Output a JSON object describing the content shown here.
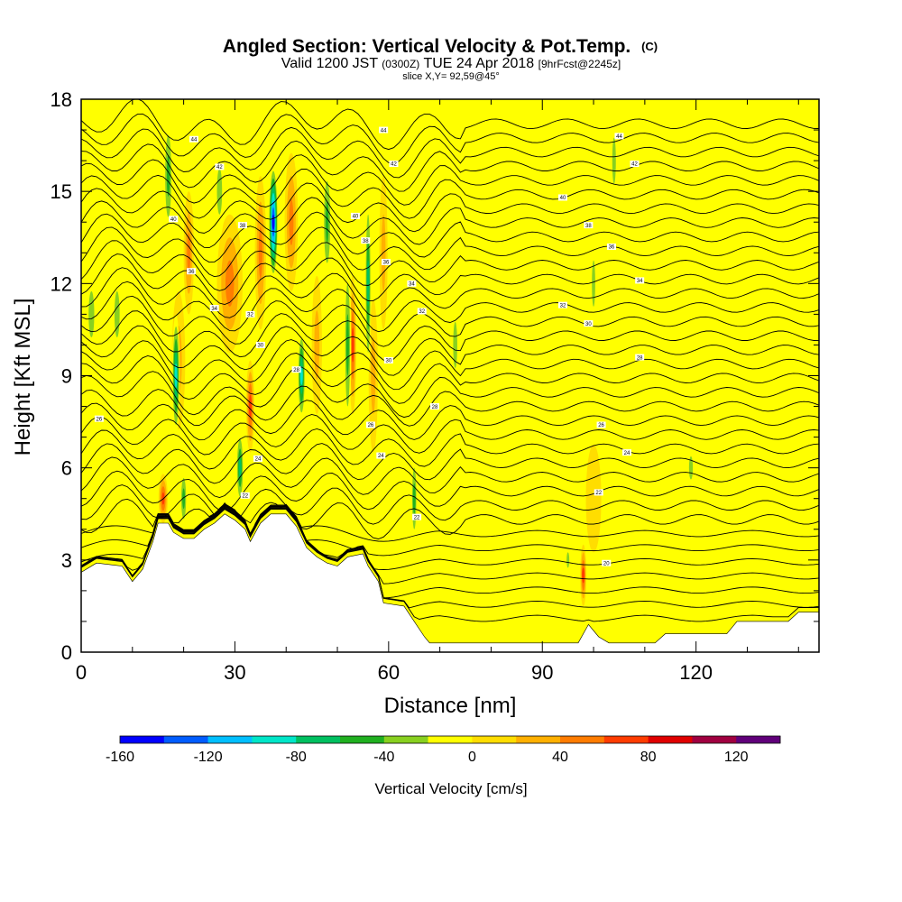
{
  "chart_data": {
    "type": "heatmap",
    "title": "Angled Section: Vertical Velocity & Pot.Temp.",
    "title_unit": "(C)",
    "subtitle_parts": [
      "Valid 1200 JST",
      "(0300Z)",
      "TUE 24 Apr 2018",
      "[9hrFcst@2245z]"
    ],
    "slice_label": "slice X,Y= 92,59@45°",
    "xlabel": "Distance [nm]",
    "ylabel": "Height [Kft MSL]",
    "xlim": [
      0,
      144
    ],
    "ylim": [
      0,
      18
    ],
    "x_ticks": [
      "0",
      "30",
      "60",
      "90",
      "120"
    ],
    "y_ticks": [
      "0",
      "3",
      "6",
      "9",
      "12",
      "15",
      "18"
    ],
    "colorbar": {
      "label": "Vertical Velocity [cm/s]",
      "range": [
        -160,
        140
      ],
      "step": 20,
      "tick_labels": [
        "-160",
        "-120",
        "-80",
        "-40",
        "0",
        "40",
        "80",
        "120"
      ],
      "colors": [
        "#0000ff",
        "#005cff",
        "#00bfff",
        "#00e6c8",
        "#00c060",
        "#20b020",
        "#88d020",
        "#ffff00",
        "#ffdd00",
        "#ffb000",
        "#ff7c00",
        "#ff3c00",
        "#e00000",
        "#a00040",
        "#60007a"
      ]
    },
    "terrain_kft": [
      [
        0,
        2.6
      ],
      [
        3,
        2.9
      ],
      [
        8,
        2.8
      ],
      [
        10,
        2.3
      ],
      [
        12,
        2.7
      ],
      [
        14,
        3.6
      ],
      [
        15,
        4.2
      ],
      [
        17,
        4.2
      ],
      [
        18,
        3.9
      ],
      [
        20,
        3.7
      ],
      [
        22,
        3.7
      ],
      [
        24,
        4.0
      ],
      [
        26,
        4.2
      ],
      [
        28,
        4.5
      ],
      [
        30,
        4.3
      ],
      [
        32,
        4.0
      ],
      [
        33,
        3.6
      ],
      [
        35,
        4.2
      ],
      [
        37,
        4.5
      ],
      [
        40,
        4.5
      ],
      [
        42,
        4.1
      ],
      [
        44,
        3.4
      ],
      [
        46,
        3.1
      ],
      [
        48,
        2.9
      ],
      [
        50,
        2.8
      ],
      [
        52,
        3.1
      ],
      [
        55,
        3.2
      ],
      [
        56,
        2.8
      ],
      [
        58,
        2.3
      ],
      [
        59,
        1.6
      ],
      [
        63,
        1.5
      ],
      [
        65,
        1.0
      ],
      [
        67,
        0.5
      ],
      [
        68,
        0.3
      ],
      [
        97,
        0.3
      ],
      [
        99,
        0.9
      ],
      [
        101,
        0.5
      ],
      [
        103,
        0.3
      ],
      [
        112,
        0.3
      ],
      [
        114,
        0.6
      ],
      [
        126,
        0.6
      ],
      [
        128,
        1.0
      ],
      [
        138,
        1.0
      ],
      [
        140,
        1.3
      ],
      [
        144,
        1.3
      ]
    ],
    "updrafts": [
      {
        "x": 16,
        "y": 5.0,
        "w": 1.8,
        "h": 1.6,
        "v": 85
      },
      {
        "x": 19,
        "y": 9.5,
        "w": 2.6,
        "h": 4.5,
        "v": 45
      },
      {
        "x": 21,
        "y": 13,
        "w": 2.0,
        "h": 4.0,
        "v": 60
      },
      {
        "x": 29,
        "y": 12,
        "w": 5.0,
        "h": 4.5,
        "v": 55
      },
      {
        "x": 33,
        "y": 8.0,
        "w": 1.6,
        "h": 3.0,
        "v": 75
      },
      {
        "x": 35,
        "y": 13,
        "w": 2.2,
        "h": 5.0,
        "v": 60
      },
      {
        "x": 41,
        "y": 14,
        "w": 2.6,
        "h": 4.5,
        "v": 55
      },
      {
        "x": 46,
        "y": 10,
        "w": 2.0,
        "h": 4.5,
        "v": 45
      },
      {
        "x": 53,
        "y": 10,
        "w": 1.4,
        "h": 4.5,
        "v": 75
      },
      {
        "x": 57,
        "y": 9,
        "w": 1.8,
        "h": 5.0,
        "v": 45
      },
      {
        "x": 59,
        "y": 13,
        "w": 1.6,
        "h": 5.0,
        "v": 40
      },
      {
        "x": 98,
        "y": 2.5,
        "w": 1.2,
        "h": 2.0,
        "v": 80
      },
      {
        "x": 100,
        "y": 5.0,
        "w": 3.0,
        "h": 3.5,
        "v": 20
      }
    ],
    "downdrafts": [
      {
        "x": 2,
        "y": 11,
        "w": 2.2,
        "h": 3.0,
        "v": -40
      },
      {
        "x": 7,
        "y": 11,
        "w": 2.0,
        "h": 3.0,
        "v": -30
      },
      {
        "x": 17,
        "y": 15.5,
        "w": 1.8,
        "h": 4.0,
        "v": -60
      },
      {
        "x": 18.5,
        "y": 9,
        "w": 1.5,
        "h": 4.0,
        "v": -100
      },
      {
        "x": 20,
        "y": 5.0,
        "w": 1.4,
        "h": 2.0,
        "v": -60
      },
      {
        "x": 27,
        "y": 15,
        "w": 2.0,
        "h": 3.0,
        "v": -40
      },
      {
        "x": 31,
        "y": 6,
        "w": 1.5,
        "h": 2.5,
        "v": -80
      },
      {
        "x": 37.5,
        "y": 14,
        "w": 1.8,
        "h": 3.8,
        "v": -150
      },
      {
        "x": 43,
        "y": 9,
        "w": 1.5,
        "h": 3.0,
        "v": -100
      },
      {
        "x": 48,
        "y": 14,
        "w": 1.8,
        "h": 4.0,
        "v": -60
      },
      {
        "x": 52,
        "y": 10,
        "w": 1.4,
        "h": 6.0,
        "v": -60
      },
      {
        "x": 56,
        "y": 12,
        "w": 1.2,
        "h": 6.0,
        "v": -70
      },
      {
        "x": 65,
        "y": 5.0,
        "w": 1.2,
        "h": 3.0,
        "v": -60
      },
      {
        "x": 73,
        "y": 10,
        "w": 1.6,
        "h": 3.0,
        "v": -30
      },
      {
        "x": 104,
        "y": 16,
        "w": 1.4,
        "h": 3.0,
        "v": -40
      },
      {
        "x": 100,
        "y": 12,
        "w": 1.3,
        "h": 3.0,
        "v": -30
      },
      {
        "x": 95,
        "y": 3.0,
        "w": 1.0,
        "h": 1.0,
        "v": -30
      },
      {
        "x": 119,
        "y": 6,
        "w": 1.5,
        "h": 1.5,
        "v": -30
      }
    ],
    "theta_contours": {
      "ymin": 1.1,
      "ymax": 17.6,
      "step": 0.46
    },
    "theta_labels": [
      {
        "x": 22,
        "y": 16.7,
        "text": "44"
      },
      {
        "x": 27,
        "y": 15.8,
        "text": "42"
      },
      {
        "x": 18,
        "y": 14.1,
        "text": "40"
      },
      {
        "x": 31.5,
        "y": 13.9,
        "text": "38"
      },
      {
        "x": 21.5,
        "y": 12.4,
        "text": "36"
      },
      {
        "x": 26,
        "y": 11.2,
        "text": "34"
      },
      {
        "x": 33,
        "y": 11.0,
        "text": "32"
      },
      {
        "x": 35,
        "y": 10.0,
        "text": "30"
      },
      {
        "x": 42,
        "y": 9.2,
        "text": "28"
      },
      {
        "x": 3.5,
        "y": 7.6,
        "text": "26"
      },
      {
        "x": 34.5,
        "y": 6.3,
        "text": "24"
      },
      {
        "x": 32,
        "y": 5.1,
        "text": "22"
      },
      {
        "x": 59,
        "y": 17.0,
        "text": "44"
      },
      {
        "x": 61,
        "y": 15.9,
        "text": "42"
      },
      {
        "x": 53.5,
        "y": 14.2,
        "text": "40"
      },
      {
        "x": 55.5,
        "y": 13.4,
        "text": "38"
      },
      {
        "x": 59.5,
        "y": 12.7,
        "text": "36"
      },
      {
        "x": 64.5,
        "y": 12.0,
        "text": "34"
      },
      {
        "x": 66.5,
        "y": 11.1,
        "text": "32"
      },
      {
        "x": 60,
        "y": 9.5,
        "text": "30"
      },
      {
        "x": 69,
        "y": 8.0,
        "text": "28"
      },
      {
        "x": 56.5,
        "y": 7.4,
        "text": "26"
      },
      {
        "x": 58.5,
        "y": 6.4,
        "text": "24"
      },
      {
        "x": 65.5,
        "y": 4.4,
        "text": "22"
      },
      {
        "x": 105,
        "y": 16.8,
        "text": "44"
      },
      {
        "x": 108,
        "y": 15.9,
        "text": "42"
      },
      {
        "x": 94,
        "y": 14.8,
        "text": "40"
      },
      {
        "x": 99,
        "y": 13.9,
        "text": "38"
      },
      {
        "x": 103.5,
        "y": 13.2,
        "text": "36"
      },
      {
        "x": 109,
        "y": 12.1,
        "text": "34"
      },
      {
        "x": 94,
        "y": 11.3,
        "text": "32"
      },
      {
        "x": 99,
        "y": 10.7,
        "text": "30"
      },
      {
        "x": 109,
        "y": 9.6,
        "text": "28"
      },
      {
        "x": 101.5,
        "y": 7.4,
        "text": "26"
      },
      {
        "x": 106.5,
        "y": 6.5,
        "text": "24"
      },
      {
        "x": 101,
        "y": 5.2,
        "text": "22"
      },
      {
        "x": 102.5,
        "y": 2.9,
        "text": "20"
      }
    ]
  }
}
